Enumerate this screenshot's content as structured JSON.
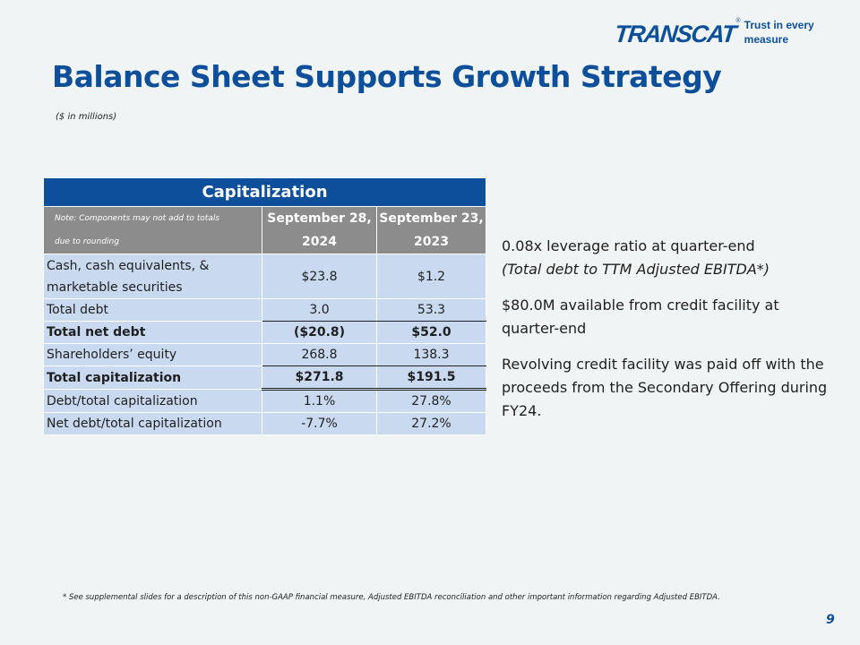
{
  "logo": {
    "wordmark": "TRANSCAT",
    "registered": "®",
    "tagline": "Trust in every measure"
  },
  "title": "Balance Sheet Supports Growth Strategy",
  "units_note": "($ in millions)",
  "table": {
    "caption": "Capitalization",
    "note_line1": "Note: Components may not add to totals",
    "note_line2": "due to rounding",
    "columns": [
      {
        "line1": "September 28,",
        "line2": "2024"
      },
      {
        "line1": "September 23,",
        "line2": "2023"
      }
    ],
    "rows": [
      {
        "label_line1": "Cash, cash equivalents, &",
        "label_line2": "marketable securities",
        "v1": "$23.8",
        "v2": "$1.2"
      },
      {
        "label": "Total debt",
        "v1": "3.0",
        "v2": "53.3"
      },
      {
        "label": "Total net debt",
        "v1": "($20.8)",
        "v2": "$52.0"
      },
      {
        "label": "Shareholders’ equity",
        "v1": "268.8",
        "v2": "138.3"
      },
      {
        "label": "Total capitalization",
        "v1": "$271.8",
        "v2": "$191.5"
      },
      {
        "label": "Debt/total capitalization",
        "v1": "1.1%",
        "v2": "27.8%"
      },
      {
        "label": "Net debt/total capitalization",
        "v1": "-7.7%",
        "v2": "27.2%"
      }
    ]
  },
  "bullets": {
    "b1_text": "0.08x leverage ratio at quarter-end",
    "b1_italic": "(Total debt to TTM Adjusted EBITDA*)",
    "b2": "$80.0M available from credit facility at quarter-end",
    "b3": "Revolving credit facility was paid off with the proceeds from the Secondary Offering during FY24."
  },
  "footnote": "* See supplemental slides for a description of this non-GAAP financial measure, Adjusted EBITDA reconciliation and other important information regarding Adjusted EBITDA.",
  "page_number": "9",
  "colors": {
    "brand_blue": "#0d4f9a",
    "header_gray": "#8c8c8c",
    "row_blue": "#c9d9ef",
    "background": "#f1f4f4"
  }
}
